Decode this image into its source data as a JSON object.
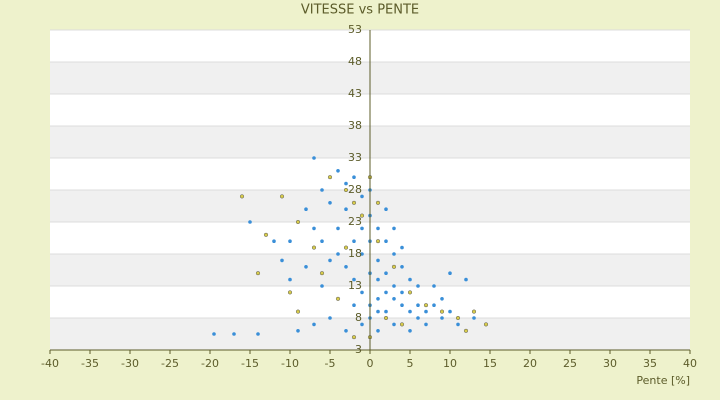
{
  "chart_data": {
    "type": "scatter",
    "title": "VITESSE vs PENTE",
    "x_label": "Pente [%]",
    "xlim": [
      -40,
      40
    ],
    "xticks": [
      -40,
      -35,
      -30,
      -25,
      -20,
      -15,
      -10,
      -5,
      0,
      5,
      10,
      15,
      20,
      25,
      30,
      35,
      40
    ],
    "ylim": [
      3,
      53
    ],
    "yticks": [
      3,
      8,
      13,
      18,
      23,
      28,
      33,
      38,
      43,
      48,
      53
    ],
    "grid": true,
    "series": [
      {
        "color": "#3a8fd8",
        "x": [
          -19.5,
          -17,
          -14,
          -15,
          -12,
          -10,
          -8,
          -7,
          -6,
          -5,
          -4,
          -3,
          -2,
          -1,
          0,
          1,
          2,
          3,
          4,
          5,
          6,
          7,
          8,
          9,
          10,
          11,
          12,
          13,
          -9,
          -7,
          -5,
          -3,
          -1,
          1,
          3,
          5,
          7,
          -2,
          -1,
          0,
          1,
          2,
          3,
          4,
          5,
          6,
          8,
          10,
          0,
          1,
          2,
          -1,
          -2,
          -3,
          -4,
          -6,
          -8,
          -11,
          0,
          1,
          2,
          3,
          4,
          -1,
          0,
          -3,
          -4,
          -10,
          -6,
          -2,
          2,
          3,
          0,
          1,
          6,
          9,
          -5,
          -7,
          4
        ],
        "values": [
          5.5,
          5.5,
          5.5,
          23,
          20,
          20,
          25,
          33,
          28,
          26,
          22,
          25,
          20,
          18,
          15,
          14,
          12,
          11,
          10,
          9,
          8,
          9,
          10,
          8,
          9,
          7,
          14,
          8,
          6,
          7,
          8,
          6,
          7,
          6,
          7,
          6,
          7,
          30,
          27,
          24,
          22,
          20,
          18,
          16,
          14,
          13,
          13,
          15,
          10,
          11,
          9,
          12,
          14,
          16,
          18,
          20,
          16,
          17,
          20,
          17,
          15,
          13,
          12,
          22,
          28,
          29,
          31,
          14,
          13,
          10,
          25,
          22,
          8,
          9,
          10,
          11,
          17,
          22,
          19
        ]
      },
      {
        "color": "#d8cc4a",
        "x": [
          -16,
          -14,
          -13,
          -11,
          -9,
          -7,
          -5,
          -3,
          -2,
          0,
          -1,
          1,
          3,
          5,
          7,
          9,
          11,
          12,
          14.5,
          13,
          -6,
          -4,
          -9,
          -10,
          2,
          4,
          -2,
          0,
          -3,
          1
        ],
        "values": [
          27,
          15,
          21,
          27,
          23,
          19,
          30,
          28,
          26,
          30,
          24,
          20,
          16,
          12,
          10,
          9,
          8,
          6,
          7,
          9,
          15,
          11,
          9,
          12,
          8,
          7,
          5,
          5,
          19,
          26
        ]
      }
    ]
  }
}
